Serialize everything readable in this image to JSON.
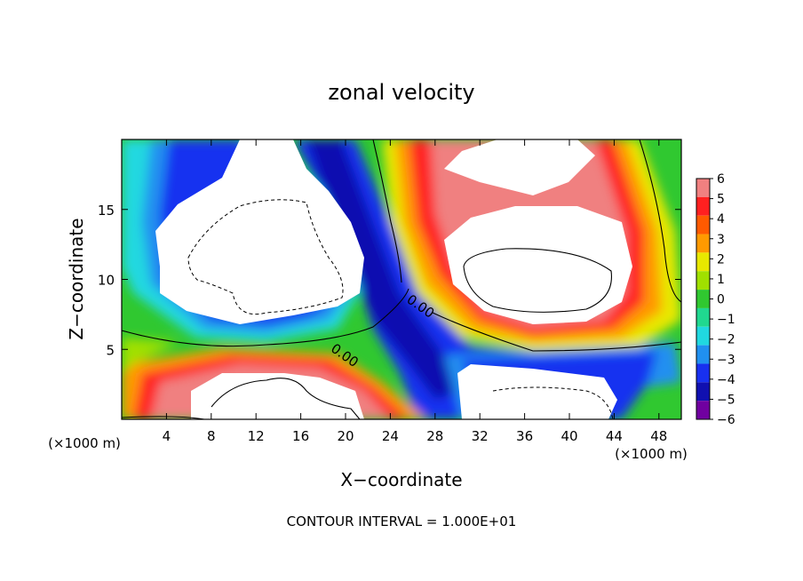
{
  "chart_data": {
    "type": "heatmap",
    "title": "zonal velocity",
    "xlabel": "X−coordinate",
    "ylabel": "Z−coordinate",
    "x_units": "(×1000 m)",
    "y_units": "(×1000 m)",
    "xlim": [
      0,
      50
    ],
    "ylim": [
      0,
      20
    ],
    "x_ticks": [
      "4",
      "8",
      "12",
      "16",
      "20",
      "24",
      "28",
      "32",
      "36",
      "40",
      "44",
      "48"
    ],
    "y_ticks": [
      "5",
      "10",
      "15"
    ],
    "colorbar": {
      "min": -6,
      "max": 6,
      "labels": [
        "6",
        "5",
        "4",
        "3",
        "2",
        "1",
        "0",
        "−1",
        "−2",
        "−3",
        "−4",
        "−5",
        "−6"
      ],
      "colors": [
        "#f08080",
        "#ff2020",
        "#ff5a00",
        "#ff9a00",
        "#e8e800",
        "#a0e000",
        "#30c830",
        "#20d890",
        "#20d8e0",
        "#2090f0",
        "#1830f0",
        "#1010b0",
        "#7000a0"
      ]
    },
    "contour_labels": [
      "0.00",
      "0.00"
    ],
    "contour_interval_text": "CONTOUR INTERVAL = 1.000E+01",
    "grid": false,
    "legend": "colorbar-right"
  }
}
